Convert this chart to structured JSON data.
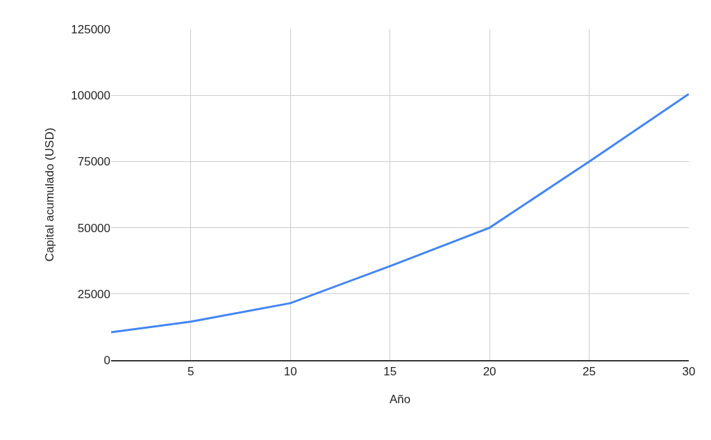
{
  "chart_data": {
    "type": "line",
    "xlabel": "Año",
    "ylabel": "Capital acumulado (USD)",
    "x": [
      1,
      5,
      10,
      15,
      20,
      25,
      30
    ],
    "series": [
      {
        "color": "#4285f4",
        "values": [
          10500,
          14500,
          21500,
          35500,
          50000,
          75000,
          100500
        ]
      }
    ],
    "xlim": [
      1,
      30
    ],
    "xticks": [
      5,
      10,
      15,
      20,
      25,
      30
    ],
    "ylim": [
      0,
      125000
    ],
    "yticks": [
      0,
      25000,
      50000,
      75000,
      100000,
      125000
    ],
    "grid": true,
    "legend": false,
    "marker": "none",
    "line_style": "solid"
  }
}
